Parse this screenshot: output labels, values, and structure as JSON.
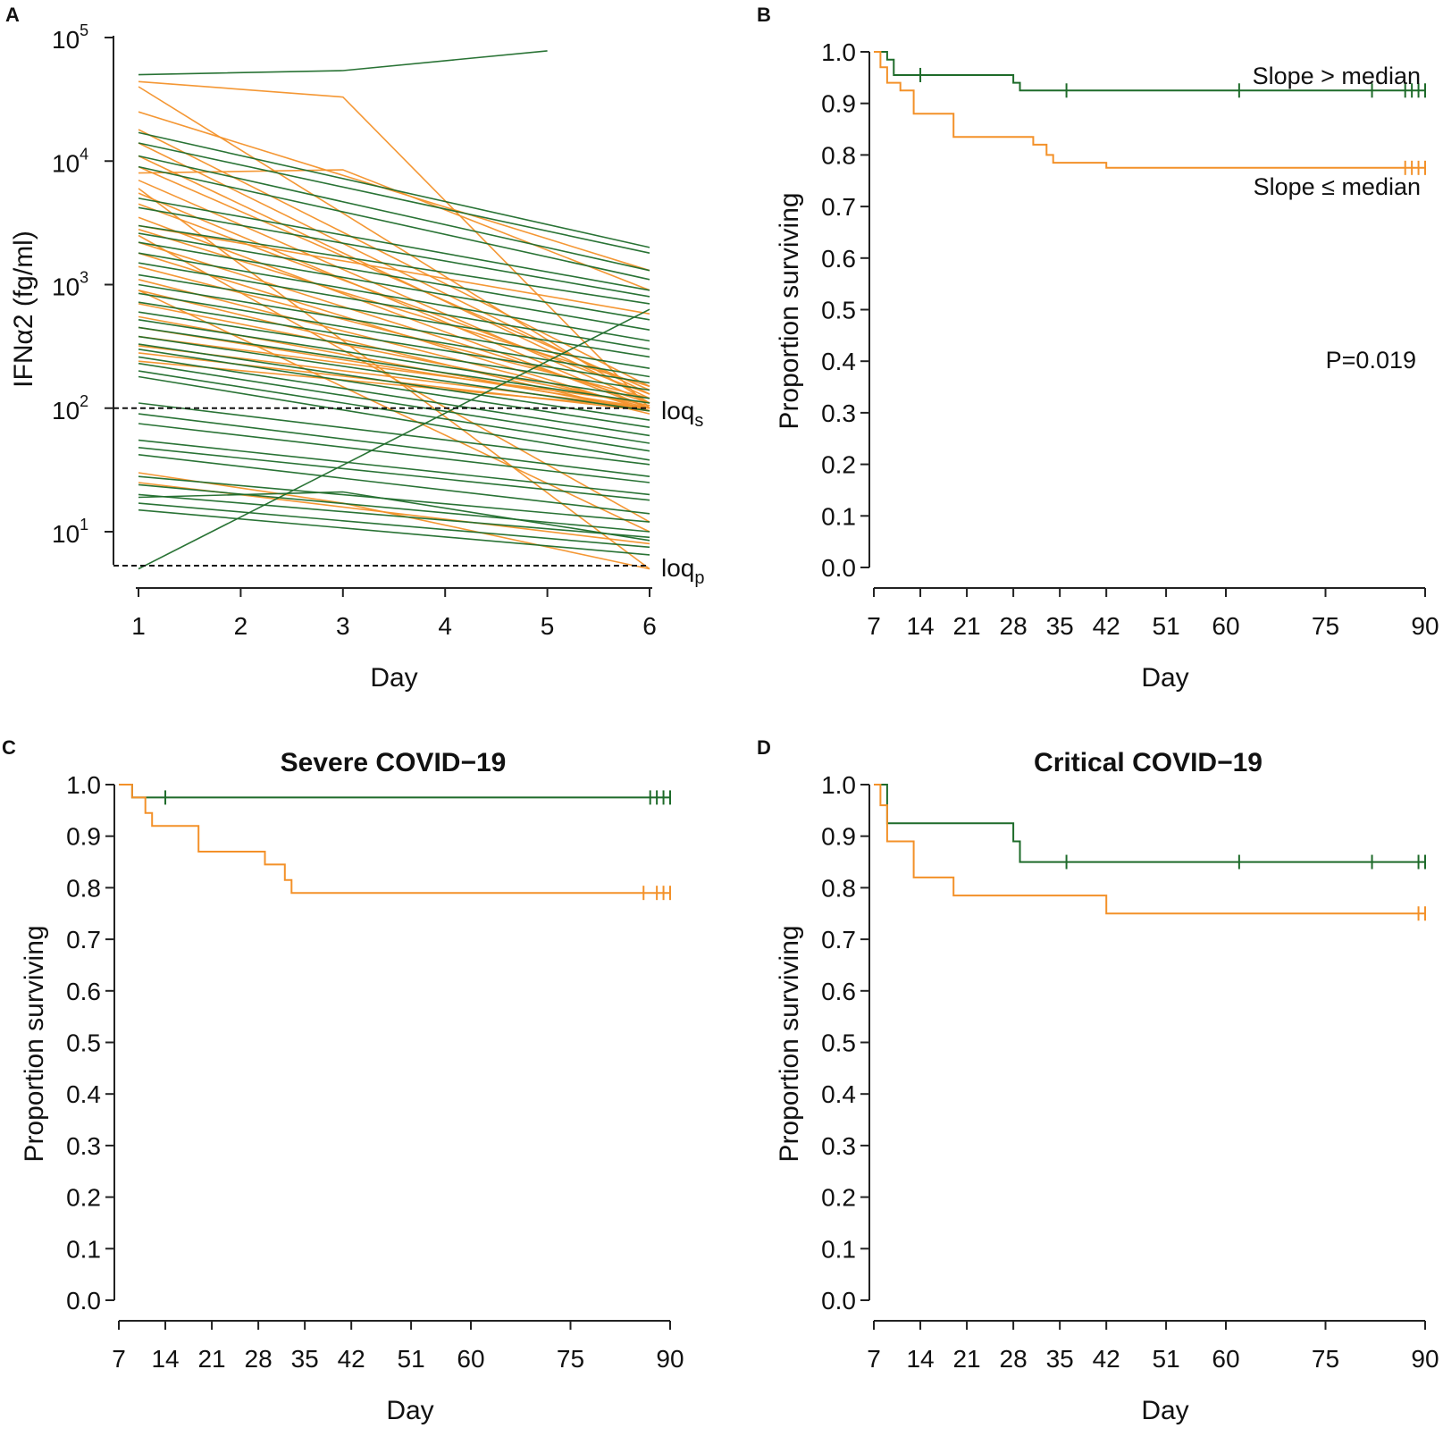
{
  "colors": {
    "green": "#1e6b2a",
    "orange": "#f39129",
    "axis": "#222222",
    "dash": "#111111"
  },
  "chart_data": [
    {
      "panel": "A",
      "type": "line",
      "title": "",
      "xlabel": "Day",
      "ylabel": "IFNα2 (fg/ml)",
      "yscale": "log",
      "xlim": [
        1,
        6
      ],
      "ylim_log10": [
        0.55,
        5.0
      ],
      "xticks": [
        "1",
        "2",
        "3",
        "4",
        "5",
        "6"
      ],
      "yticks": [
        {
          "base": "10",
          "exp": "1",
          "value": 10
        },
        {
          "base": "10",
          "exp": "2",
          "value": 100
        },
        {
          "base": "10",
          "exp": "3",
          "value": 1000
        },
        {
          "base": "10",
          "exp": "4",
          "value": 10000
        },
        {
          "base": "10",
          "exp": "5",
          "value": 100000
        }
      ],
      "reference_lines": [
        {
          "name": "loq",
          "sub": "s",
          "value": 100
        },
        {
          "name": "loq",
          "sub": "p",
          "value": 5
        }
      ],
      "series": [
        {
          "group": "green",
          "x": [
            1,
            3,
            5
          ],
          "y": [
            50000,
            54000,
            78000
          ]
        },
        {
          "group": "green",
          "x": [
            1,
            6
          ],
          "y": [
            5,
            630
          ]
        },
        {
          "group": "green",
          "x": [
            1,
            6
          ],
          "y": [
            17000,
            2000
          ]
        },
        {
          "group": "green",
          "x": [
            1,
            6
          ],
          "y": [
            14000,
            1800
          ]
        },
        {
          "group": "green",
          "x": [
            1,
            6
          ],
          "y": [
            11000,
            1300
          ]
        },
        {
          "group": "green",
          "x": [
            1,
            6
          ],
          "y": [
            9000,
            1100
          ]
        },
        {
          "group": "green",
          "x": [
            1,
            6
          ],
          "y": [
            5000,
            900
          ]
        },
        {
          "group": "green",
          "x": [
            1,
            6
          ],
          "y": [
            4200,
            800
          ]
        },
        {
          "group": "green",
          "x": [
            1,
            6
          ],
          "y": [
            3000,
            700
          ]
        },
        {
          "group": "green",
          "x": [
            1,
            6
          ],
          "y": [
            2600,
            520
          ]
        },
        {
          "group": "green",
          "x": [
            1,
            6
          ],
          "y": [
            2200,
            430
          ]
        },
        {
          "group": "green",
          "x": [
            1,
            6
          ],
          "y": [
            1800,
            350
          ]
        },
        {
          "group": "green",
          "x": [
            1,
            6
          ],
          "y": [
            1500,
            300
          ]
        },
        {
          "group": "green",
          "x": [
            1,
            6
          ],
          "y": [
            1200,
            260
          ]
        },
        {
          "group": "green",
          "x": [
            1,
            6
          ],
          "y": [
            1000,
            210
          ]
        },
        {
          "group": "green",
          "x": [
            1,
            6
          ],
          "y": [
            850,
            180
          ]
        },
        {
          "group": "green",
          "x": [
            1,
            6
          ],
          "y": [
            720,
            160
          ]
        },
        {
          "group": "green",
          "x": [
            1,
            6
          ],
          "y": [
            600,
            140
          ]
        },
        {
          "group": "green",
          "x": [
            1,
            6
          ],
          "y": [
            520,
            120
          ]
        },
        {
          "group": "green",
          "x": [
            1,
            6
          ],
          "y": [
            450,
            110
          ]
        },
        {
          "group": "green",
          "x": [
            1,
            6
          ],
          "y": [
            380,
            95
          ]
        },
        {
          "group": "green",
          "x": [
            1,
            6
          ],
          "y": [
            330,
            80
          ]
        },
        {
          "group": "green",
          "x": [
            1,
            6
          ],
          "y": [
            300,
            70
          ]
        },
        {
          "group": "green",
          "x": [
            1,
            6
          ],
          "y": [
            260,
            60
          ]
        },
        {
          "group": "green",
          "x": [
            1,
            6
          ],
          "y": [
            230,
            52
          ]
        },
        {
          "group": "green",
          "x": [
            1,
            6
          ],
          "y": [
            200,
            45
          ]
        },
        {
          "group": "green",
          "x": [
            1,
            6
          ],
          "y": [
            180,
            38
          ]
        },
        {
          "group": "green",
          "x": [
            1,
            6
          ],
          "y": [
            110,
            35
          ]
        },
        {
          "group": "green",
          "x": [
            1,
            6
          ],
          "y": [
            90,
            28
          ]
        },
        {
          "group": "green",
          "x": [
            1,
            6
          ],
          "y": [
            75,
            25
          ]
        },
        {
          "group": "green",
          "x": [
            1,
            6
          ],
          "y": [
            55,
            20
          ]
        },
        {
          "group": "green",
          "x": [
            1,
            6
          ],
          "y": [
            48,
            18
          ]
        },
        {
          "group": "green",
          "x": [
            1,
            6
          ],
          "y": [
            42,
            14
          ]
        },
        {
          "group": "green",
          "x": [
            1,
            6
          ],
          "y": [
            28,
            12
          ]
        },
        {
          "group": "green",
          "x": [
            1,
            6
          ],
          "y": [
            24,
            10
          ]
        },
        {
          "group": "green",
          "x": [
            1,
            6
          ],
          "y": [
            20,
            9
          ]
        },
        {
          "group": "green",
          "x": [
            1,
            6
          ],
          "y": [
            17,
            7.5
          ]
        },
        {
          "group": "green",
          "x": [
            1,
            6
          ],
          "y": [
            15,
            6.5
          ]
        },
        {
          "group": "green",
          "x": [
            1,
            3,
            6
          ],
          "y": [
            19,
            21,
            8.5
          ]
        },
        {
          "group": "orange",
          "x": [
            1,
            3,
            6
          ],
          "y": [
            44000,
            33000,
            100
          ]
        },
        {
          "group": "orange",
          "x": [
            1,
            6
          ],
          "y": [
            40000,
            110
          ]
        },
        {
          "group": "orange",
          "x": [
            1,
            6
          ],
          "y": [
            25000,
            1300
          ]
        },
        {
          "group": "orange",
          "x": [
            1,
            6
          ],
          "y": [
            18000,
            150
          ]
        },
        {
          "group": "orange",
          "x": [
            1,
            6
          ],
          "y": [
            14000,
            130
          ]
        },
        {
          "group": "orange",
          "x": [
            1,
            6
          ],
          "y": [
            11000,
            120
          ]
        },
        {
          "group": "orange",
          "x": [
            1,
            6
          ],
          "y": [
            9000,
            140
          ]
        },
        {
          "group": "orange",
          "x": [
            1,
            6
          ],
          "y": [
            7000,
            110
          ]
        },
        {
          "group": "orange",
          "x": [
            1,
            6
          ],
          "y": [
            5500,
            100
          ]
        },
        {
          "group": "orange",
          "x": [
            1,
            6
          ],
          "y": [
            4500,
            130
          ]
        },
        {
          "group": "orange",
          "x": [
            1,
            6
          ],
          "y": [
            3500,
            100
          ]
        },
        {
          "group": "orange",
          "x": [
            1,
            6
          ],
          "y": [
            2800,
            150
          ]
        },
        {
          "group": "orange",
          "x": [
            1,
            6
          ],
          "y": [
            2200,
            110
          ]
        },
        {
          "group": "orange",
          "x": [
            1,
            6
          ],
          "y": [
            1800,
            95
          ]
        },
        {
          "group": "orange",
          "x": [
            1,
            6
          ],
          "y": [
            1400,
            120
          ]
        },
        {
          "group": "orange",
          "x": [
            1,
            6
          ],
          "y": [
            1100,
            100
          ]
        },
        {
          "group": "orange",
          "x": [
            1,
            6
          ],
          "y": [
            900,
            90
          ]
        },
        {
          "group": "orange",
          "x": [
            1,
            6
          ],
          "y": [
            700,
            105
          ]
        },
        {
          "group": "orange",
          "x": [
            1,
            6
          ],
          "y": [
            550,
            95
          ]
        },
        {
          "group": "orange",
          "x": [
            1,
            6
          ],
          "y": [
            450,
            100
          ]
        },
        {
          "group": "orange",
          "x": [
            1,
            6
          ],
          "y": [
            380,
            110
          ]
        },
        {
          "group": "orange",
          "x": [
            1,
            6
          ],
          "y": [
            320,
            100
          ]
        },
        {
          "group": "orange",
          "x": [
            1,
            6
          ],
          "y": [
            280,
            95
          ]
        },
        {
          "group": "orange",
          "x": [
            1,
            6
          ],
          "y": [
            240,
            100
          ]
        },
        {
          "group": "orange",
          "x": [
            1,
            6
          ],
          "y": [
            6000,
            5
          ]
        },
        {
          "group": "orange",
          "x": [
            1,
            6
          ],
          "y": [
            2500,
            12
          ]
        },
        {
          "group": "orange",
          "x": [
            1,
            6
          ],
          "y": [
            900,
            10
          ]
        },
        {
          "group": "orange",
          "x": [
            1,
            6
          ],
          "y": [
            3000,
            580
          ]
        },
        {
          "group": "orange",
          "x": [
            1,
            3,
            6
          ],
          "y": [
            30,
            17,
            5
          ]
        },
        {
          "group": "orange",
          "x": [
            1,
            6
          ],
          "y": [
            25,
            8
          ]
        },
        {
          "group": "orange",
          "x": [
            1,
            3,
            6
          ],
          "y": [
            8000,
            8500,
            900
          ]
        }
      ]
    },
    {
      "panel": "B",
      "type": "line",
      "title": "",
      "xlabel": "Day",
      "ylabel": "Proportion surviving",
      "xticks": [
        "7",
        "14",
        "21",
        "28",
        "35",
        "42",
        "51",
        "60",
        "75",
        "90"
      ],
      "yticks": [
        "0.0",
        "0.1",
        "0.2",
        "0.3",
        "0.4",
        "0.5",
        "0.6",
        "0.7",
        "0.8",
        "0.9",
        "1.0"
      ],
      "annotations": [
        {
          "text": "Slope > median"
        },
        {
          "text": "Slope ≤ median"
        },
        {
          "text": "P=0.019"
        }
      ],
      "series": [
        {
          "name": "Slope > median",
          "color": "green",
          "steps": [
            [
              7,
              1.0
            ],
            [
              9,
              0.985
            ],
            [
              10,
              0.955
            ],
            [
              28,
              0.94
            ],
            [
              29,
              0.925
            ],
            [
              90,
              0.925
            ]
          ],
          "censor": [
            14,
            36,
            62,
            82,
            87,
            88,
            89,
            90
          ]
        },
        {
          "name": "Slope ≤ median",
          "color": "orange",
          "steps": [
            [
              7,
              1.0
            ],
            [
              8,
              0.97
            ],
            [
              9,
              0.94
            ],
            [
              11,
              0.925
            ],
            [
              13,
              0.88
            ],
            [
              19,
              0.835
            ],
            [
              31,
              0.82
            ],
            [
              33,
              0.8
            ],
            [
              34,
              0.785
            ],
            [
              42,
              0.775
            ],
            [
              90,
              0.775
            ]
          ],
          "censor": [
            87,
            88,
            89,
            90
          ]
        }
      ]
    },
    {
      "panel": "C",
      "type": "line",
      "title": "Severe COVID−19",
      "xlabel": "Day",
      "ylabel": "Proportion surviving",
      "xticks": [
        "7",
        "14",
        "21",
        "28",
        "35",
        "42",
        "51",
        "60",
        "75",
        "90"
      ],
      "yticks": [
        "0.0",
        "0.1",
        "0.2",
        "0.3",
        "0.4",
        "0.5",
        "0.6",
        "0.7",
        "0.8",
        "0.9",
        "1.0"
      ],
      "series": [
        {
          "name": "Slope > median",
          "color": "green",
          "steps": [
            [
              7,
              1.0
            ],
            [
              9,
              0.975
            ],
            [
              90,
              0.975
            ]
          ],
          "censor": [
            14,
            87,
            88,
            89,
            90
          ]
        },
        {
          "name": "Slope ≤ median",
          "color": "orange",
          "steps": [
            [
              7,
              1.0
            ],
            [
              9,
              0.975
            ],
            [
              11,
              0.945
            ],
            [
              12,
              0.92
            ],
            [
              19,
              0.87
            ],
            [
              29,
              0.845
            ],
            [
              32,
              0.815
            ],
            [
              33,
              0.79
            ],
            [
              90,
              0.79
            ]
          ],
          "censor": [
            86,
            88,
            89,
            90
          ]
        }
      ]
    },
    {
      "panel": "D",
      "type": "line",
      "title": "Critical COVID−19",
      "xlabel": "Day",
      "ylabel": "Proportion surviving",
      "xticks": [
        "7",
        "14",
        "21",
        "28",
        "35",
        "42",
        "51",
        "60",
        "75",
        "90"
      ],
      "yticks": [
        "0.0",
        "0.1",
        "0.2",
        "0.3",
        "0.4",
        "0.5",
        "0.6",
        "0.7",
        "0.8",
        "0.9",
        "1.0"
      ],
      "series": [
        {
          "name": "Slope > median",
          "color": "green",
          "steps": [
            [
              7,
              1.0
            ],
            [
              9,
              0.925
            ],
            [
              28,
              0.89
            ],
            [
              29,
              0.85
            ],
            [
              90,
              0.85
            ]
          ],
          "censor": [
            36,
            62,
            82,
            89,
            90
          ]
        },
        {
          "name": "Slope ≤ median",
          "color": "orange",
          "steps": [
            [
              7,
              1.0
            ],
            [
              8,
              0.96
            ],
            [
              9,
              0.89
            ],
            [
              13,
              0.82
            ],
            [
              19,
              0.785
            ],
            [
              42,
              0.75
            ],
            [
              90,
              0.75
            ]
          ],
          "censor": [
            89,
            90
          ]
        }
      ]
    }
  ]
}
